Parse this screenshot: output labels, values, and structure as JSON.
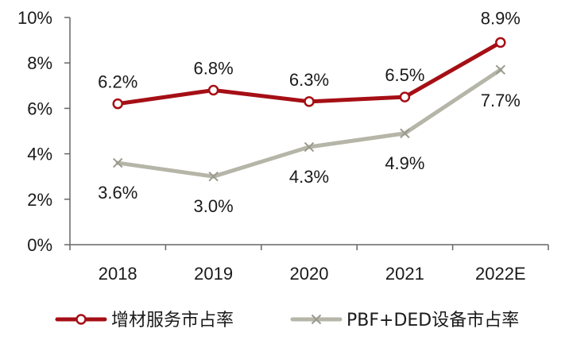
{
  "chart_data": {
    "type": "line",
    "categories": [
      "2018",
      "2019",
      "2020",
      "2021",
      "2022E"
    ],
    "ylim": [
      0,
      10
    ],
    "yticks": [
      "0%",
      "2%",
      "4%",
      "6%",
      "8%",
      "10%"
    ],
    "grid": false,
    "legend_position": "bottom",
    "series": [
      {
        "name": "增材服务市占率",
        "values": [
          6.2,
          6.8,
          6.3,
          6.5,
          8.9
        ],
        "labels": [
          "6.2%",
          "6.8%",
          "6.3%",
          "6.5%",
          "8.9%"
        ],
        "color": "#A50F15",
        "marker": "circle"
      },
      {
        "name": "PBF+DED设备市占率",
        "values": [
          3.6,
          3.0,
          4.3,
          4.9,
          7.7
        ],
        "labels": [
          "3.6%",
          "3.0%",
          "4.3%",
          "4.9%",
          "7.7%"
        ],
        "color": "#B5B5A8",
        "marker": "x"
      }
    ]
  }
}
